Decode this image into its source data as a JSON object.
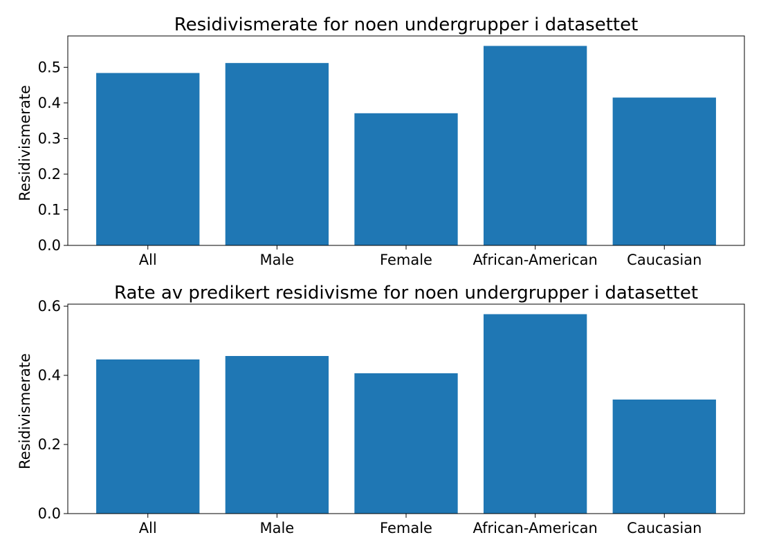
{
  "bar_color": "#1f77b4",
  "chart_data": [
    {
      "type": "bar",
      "title": "Residivismerate for noen undergrupper i datasettet",
      "xlabel": "",
      "ylabel": "Residivismerate",
      "categories": [
        "All",
        "Male",
        "Female",
        "African-American",
        "Caucasian"
      ],
      "values": [
        0.484,
        0.512,
        0.371,
        0.56,
        0.415
      ],
      "ylim": [
        0,
        0.588
      ],
      "yticks": [
        "0.0",
        "0.1",
        "0.2",
        "0.3",
        "0.4",
        "0.5"
      ],
      "ytick_values": [
        0,
        0.1,
        0.2,
        0.3,
        0.4,
        0.5
      ],
      "grid": false
    },
    {
      "type": "bar",
      "title": "Rate av predikert residivisme for noen undergrupper i datasettet",
      "xlabel": "",
      "ylabel": "Residivismerate",
      "categories": [
        "All",
        "Male",
        "Female",
        "African-American",
        "Caucasian"
      ],
      "values": [
        0.446,
        0.456,
        0.406,
        0.577,
        0.33
      ],
      "ylim": [
        0,
        0.606
      ],
      "yticks": [
        "0.0",
        "0.2",
        "0.4",
        "0.6"
      ],
      "ytick_values": [
        0,
        0.2,
        0.4,
        0.6
      ],
      "grid": false
    }
  ]
}
